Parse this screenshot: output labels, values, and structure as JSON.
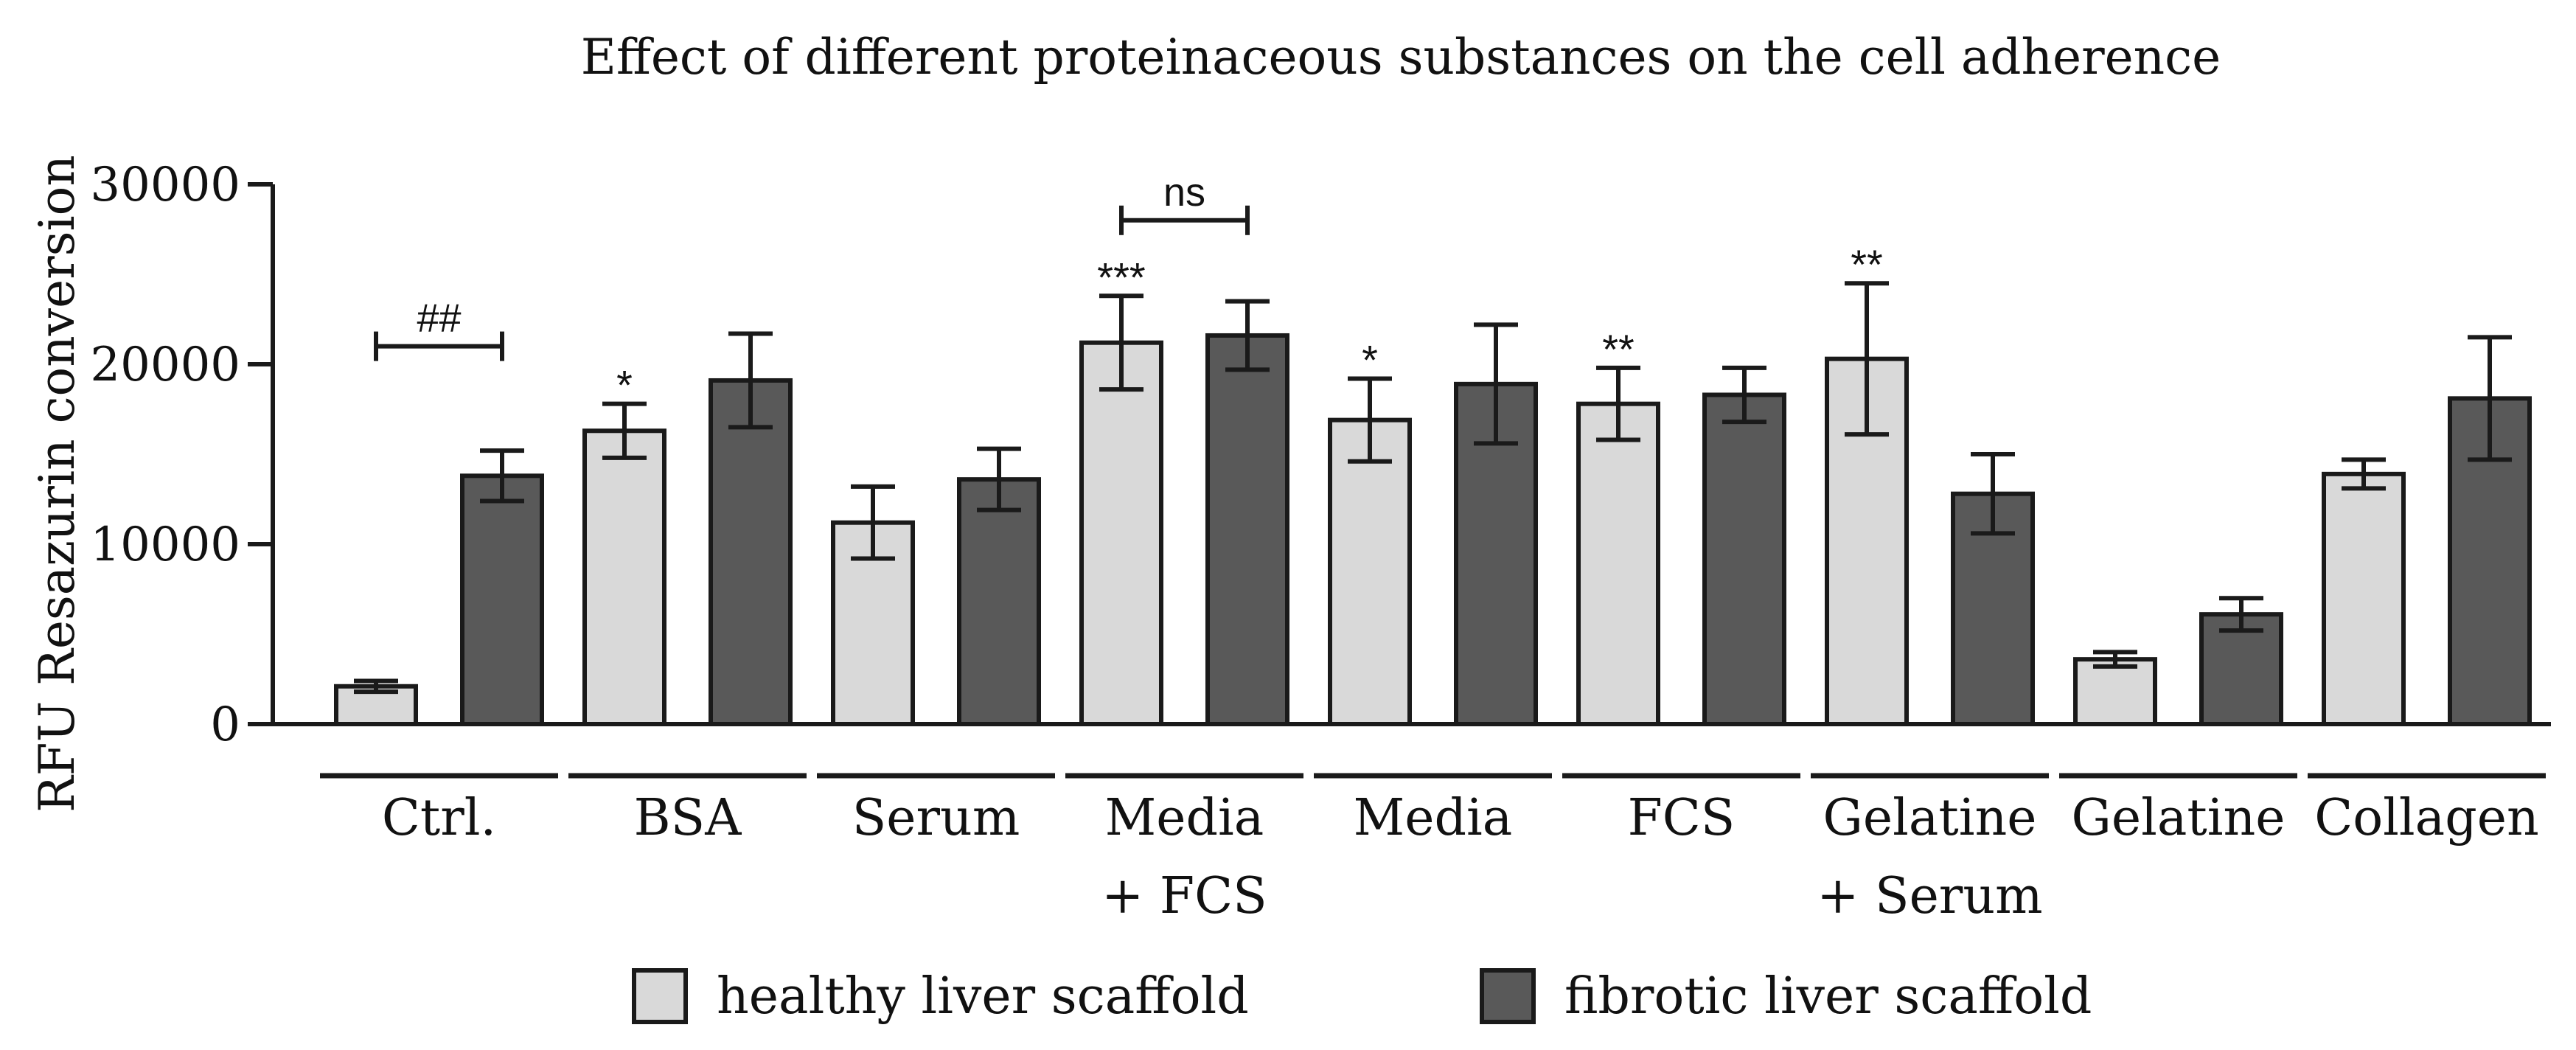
{
  "chart_data": {
    "type": "bar",
    "title": "Effect of different proteinaceous substances on the cell adherence",
    "xlabel": "",
    "ylabel": "RFU Resazurin conversion",
    "ylim": [
      0,
      30000
    ],
    "yticks": [
      0,
      10000,
      20000,
      30000
    ],
    "yticklabels": [
      "0",
      "10000",
      "20000",
      "30000"
    ],
    "grid": false,
    "categories": [
      [
        "Ctrl."
      ],
      [
        "BSA"
      ],
      [
        "Serum"
      ],
      [
        "Media",
        "+ FCS"
      ],
      [
        "Media"
      ],
      [
        "FCS"
      ],
      [
        "Gelatine",
        "+ Serum"
      ],
      [
        "Gelatine"
      ],
      [
        "Collagen"
      ]
    ],
    "series": [
      {
        "name": "healthy liver scaffold",
        "color": "#d9d9d9",
        "values": [
          2100,
          16300,
          11200,
          21200,
          16900,
          17800,
          20300,
          3600,
          13900
        ],
        "error": [
          300,
          1500,
          2000,
          2600,
          2300,
          2000,
          4200,
          400,
          800
        ]
      },
      {
        "name": "fibrotic liver scaffold",
        "color": "#595959",
        "values": [
          13800,
          19100,
          13600,
          21600,
          18900,
          18300,
          12800,
          6100,
          18100
        ],
        "error": [
          1400,
          2600,
          1700,
          1900,
          3300,
          1500,
          2200,
          900,
          3400
        ]
      }
    ],
    "annotations": {
      "stars": [
        {
          "category": 1,
          "series": 0,
          "text": "*"
        },
        {
          "category": 3,
          "series": 0,
          "text": "***"
        },
        {
          "category": 4,
          "series": 0,
          "text": "*"
        },
        {
          "category": 5,
          "series": 0,
          "text": "**"
        },
        {
          "category": 6,
          "series": 0,
          "text": "**"
        }
      ],
      "brackets": [
        {
          "category": 0,
          "text": "##",
          "y": 21000
        },
        {
          "category": 3,
          "text": "ns",
          "y": 28000
        }
      ]
    },
    "legend": {
      "position": "bottom-center",
      "entries": [
        "healthy liver scaffold",
        "fibrotic liver scaffold"
      ]
    }
  }
}
